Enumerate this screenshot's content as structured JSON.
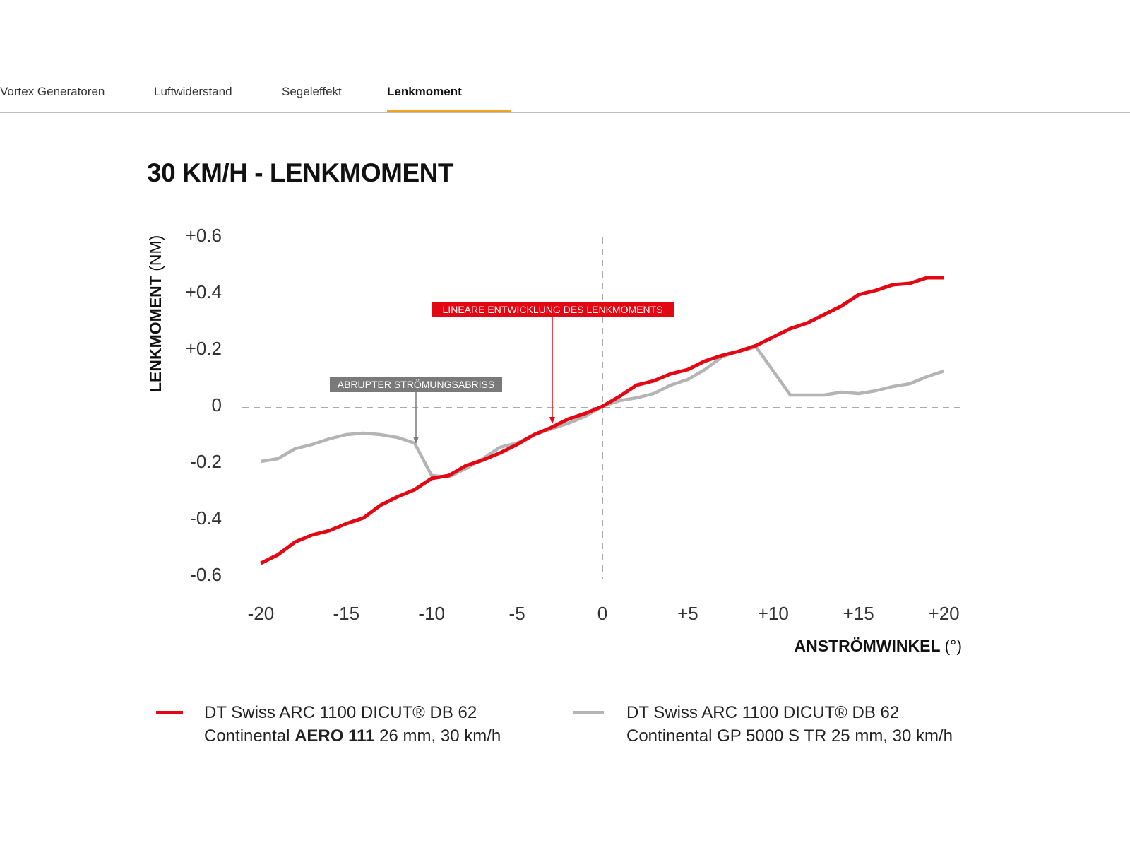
{
  "tabs": [
    {
      "label": "Vortex Generatoren",
      "active": false
    },
    {
      "label": "Luftwiderstand",
      "active": false
    },
    {
      "label": "Segeleffekt",
      "active": false
    },
    {
      "label": "Lenkmoment",
      "active": true
    }
  ],
  "colors": {
    "accent_tab": "#f0a21b",
    "red_series": "#e30613",
    "gray_series": "#b4b4b4",
    "gray_label": "#7a7a7a"
  },
  "chart_data": {
    "type": "line",
    "title": "30 KM/H - LENKMOMENT",
    "xlabel": "ANSTRÖMWINKEL",
    "xlabel_unit": "(°)",
    "ylabel": "LENKMOMENT",
    "ylabel_unit": "(NM)",
    "xlim": [
      -20,
      20
    ],
    "ylim": [
      -0.6,
      0.6
    ],
    "x_ticks": [
      "-20",
      "-15",
      "-10",
      "-5",
      "0",
      "+5",
      "+10",
      "+15",
      "+20"
    ],
    "y_ticks": [
      "+0.6",
      "+0.4",
      "+0.2",
      "0",
      "-0.2",
      "-0.4",
      "-0.6"
    ],
    "x": [
      -20,
      -19,
      -18,
      -17,
      -16,
      -15,
      -14,
      -13,
      -12,
      -11,
      -10,
      -9,
      -8,
      -7,
      -6,
      -5,
      -4,
      -3,
      -2,
      -1,
      0,
      1,
      2,
      3,
      4,
      5,
      6,
      7,
      8,
      9,
      10,
      11,
      12,
      13,
      14,
      15,
      16,
      17,
      18,
      19,
      20
    ],
    "series": [
      {
        "name": "AERO 111",
        "color": "#e30613",
        "values": [
          -0.55,
          -0.52,
          -0.475,
          -0.45,
          -0.435,
          -0.41,
          -0.39,
          -0.345,
          -0.315,
          -0.29,
          -0.25,
          -0.24,
          -0.205,
          -0.185,
          -0.16,
          -0.13,
          -0.095,
          -0.07,
          -0.04,
          -0.02,
          0.005,
          0.04,
          0.08,
          0.095,
          0.12,
          0.135,
          0.165,
          0.185,
          0.2,
          0.22,
          0.25,
          0.28,
          0.3,
          0.33,
          0.36,
          0.4,
          0.415,
          0.435,
          0.44,
          0.46,
          0.46
        ]
      },
      {
        "name": "GP 5000 S TR",
        "color": "#b4b4b4",
        "values": [
          -0.19,
          -0.18,
          -0.145,
          -0.13,
          -0.11,
          -0.095,
          -0.09,
          -0.095,
          -0.105,
          -0.125,
          -0.24,
          -0.245,
          -0.215,
          -0.18,
          -0.14,
          -0.125,
          -0.095,
          -0.075,
          -0.055,
          -0.03,
          0.005,
          0.025,
          0.035,
          0.05,
          0.08,
          0.1,
          0.135,
          0.18,
          0.2,
          0.215,
          0.13,
          0.045,
          0.045,
          0.045,
          0.055,
          0.05,
          0.06,
          0.075,
          0.085,
          0.11,
          0.13
        ]
      }
    ],
    "annotations": [
      {
        "text": "LINEARE ENTWICKLUNG DES LENKMOMENTS",
        "x": -3,
        "y": -0.05,
        "color": "#e30613"
      },
      {
        "text": "ABRUPTER STRÖMUNGSABRISS",
        "x": -11,
        "y": -0.12,
        "color": "#7a7a7a"
      }
    ],
    "reference_lines": {
      "x": 0,
      "y": 0,
      "style": "dashed"
    },
    "grid": false,
    "legend": {
      "placement": "bottom",
      "entries": [
        {
          "line1": "DT Swiss ARC 1100 DICUT® DB 62",
          "line2_prefix": "Continental ",
          "line2_bold": "AERO 111",
          "line2_suffix": " 26 mm, 30 km/h"
        },
        {
          "line1": "DT Swiss ARC 1100 DICUT® DB 62",
          "line2_prefix": "Continental GP 5000 S TR 25 mm, 30 km/h",
          "line2_bold": "",
          "line2_suffix": ""
        }
      ]
    }
  }
}
